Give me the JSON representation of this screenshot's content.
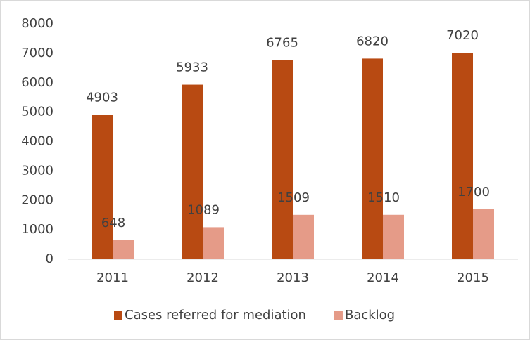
{
  "chart_data": {
    "type": "bar",
    "categories": [
      "2011",
      "2012",
      "2013",
      "2014",
      "2015"
    ],
    "series": [
      {
        "name": "Cases referred for mediation",
        "color": "#b84a12",
        "values": [
          4903,
          5933,
          6765,
          6820,
          7020
        ]
      },
      {
        "name": "Backlog",
        "color": "#e59b88",
        "values": [
          648,
          1089,
          1509,
          1510,
          1700
        ]
      }
    ],
    "ylim": [
      0,
      8000
    ],
    "yticks": [
      0,
      1000,
      2000,
      3000,
      4000,
      5000,
      6000,
      7000,
      8000
    ],
    "grid": false,
    "legend": "bottom"
  }
}
